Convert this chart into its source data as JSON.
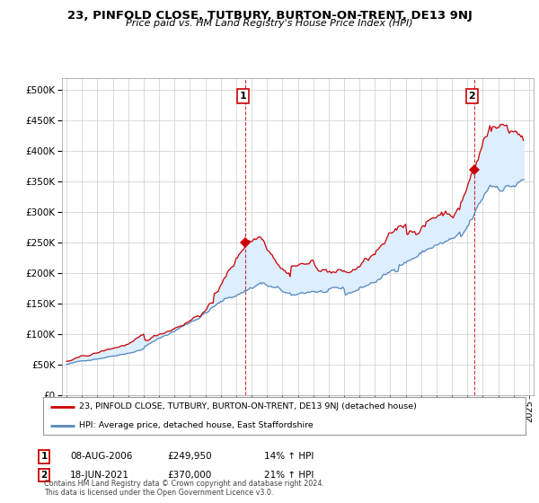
{
  "title": "23, PINFOLD CLOSE, TUTBURY, BURTON-ON-TRENT, DE13 9NJ",
  "subtitle": "Price paid vs. HM Land Registry's House Price Index (HPI)",
  "legend_line1": "23, PINFOLD CLOSE, TUTBURY, BURTON-ON-TRENT, DE13 9NJ (detached house)",
  "legend_line2": "HPI: Average price, detached house, East Staffordshire",
  "annotation1_label": "1",
  "annotation1_date": "08-AUG-2006",
  "annotation1_price": "£249,950",
  "annotation1_hpi": "14% ↑ HPI",
  "annotation2_label": "2",
  "annotation2_date": "18-JUN-2021",
  "annotation2_price": "£370,000",
  "annotation2_hpi": "21% ↑ HPI",
  "footnote": "Contains HM Land Registry data © Crown copyright and database right 2024.\nThis data is licensed under the Open Government Licence v3.0.",
  "red_color": "#cc0000",
  "blue_color": "#5588bb",
  "fill_color": "#ddeeff",
  "background_color": "#ffffff",
  "grid_color": "#cccccc",
  "ylim": [
    0,
    520000
  ],
  "yticks": [
    0,
    50000,
    100000,
    150000,
    200000,
    250000,
    300000,
    350000,
    400000,
    450000,
    500000
  ],
  "sale1_x": 2006.58,
  "sale1_price": 249950,
  "sale2_x": 2021.45,
  "sale2_price": 370000,
  "xlim_left": 1994.7,
  "xlim_right": 2025.3
}
